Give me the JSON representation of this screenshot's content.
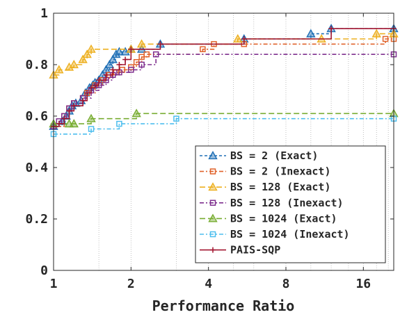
{
  "chart_data": {
    "type": "line",
    "xlabel": "Performance Ratio",
    "ylabel": "",
    "x_scale": "log2",
    "xlim": [
      1,
      21
    ],
    "ylim": [
      0,
      1
    ],
    "x_ticks": [
      1,
      2,
      4,
      8,
      16
    ],
    "x_tick_labels": [
      "1",
      "2",
      "4",
      "8",
      "16"
    ],
    "y_ticks": [
      0,
      0.2,
      0.4,
      0.6,
      0.8,
      1
    ],
    "y_tick_labels": [
      "0",
      "0.2",
      "0.4",
      "0.6",
      "0.8",
      "1"
    ],
    "grid": "vertical dotted lines at selected x positions",
    "vgrid_x": [
      1.5,
      2,
      3,
      4,
      5,
      6,
      8,
      10,
      12,
      14,
      16,
      18,
      20
    ],
    "legend_position": "lower-right",
    "series": [
      {
        "name": "BS = 2 (Exact)",
        "color": "#1f6fb5",
        "dash": "4 3",
        "marker": "triangle",
        "x": [
          1.0,
          1.08,
          1.12,
          1.15,
          1.18,
          1.22,
          1.28,
          1.33,
          1.38,
          1.42,
          1.45,
          1.5,
          1.55,
          1.6,
          1.65,
          1.7,
          1.75,
          1.8,
          1.9,
          2.0,
          2.2,
          2.6,
          5.5,
          10,
          12,
          21
        ],
        "y": [
          0.56,
          0.58,
          0.6,
          0.62,
          0.64,
          0.65,
          0.66,
          0.69,
          0.71,
          0.72,
          0.73,
          0.74,
          0.76,
          0.78,
          0.8,
          0.82,
          0.84,
          0.85,
          0.85,
          0.86,
          0.86,
          0.88,
          0.9,
          0.92,
          0.94,
          0.94
        ]
      },
      {
        "name": "BS = 2 (Inexact)",
        "color": "#e0622a",
        "dash": "6 3 2 3",
        "marker": "square",
        "x": [
          1.0,
          1.1,
          1.15,
          1.2,
          1.3,
          1.35,
          1.45,
          1.55,
          1.65,
          1.75,
          1.85,
          2.0,
          2.1,
          2.2,
          2.3,
          3.8,
          4.2,
          5.5,
          19.5,
          21
        ],
        "y": [
          0.56,
          0.6,
          0.63,
          0.65,
          0.67,
          0.69,
          0.72,
          0.74,
          0.76,
          0.77,
          0.78,
          0.79,
          0.81,
          0.83,
          0.84,
          0.86,
          0.88,
          0.88,
          0.9,
          0.9
        ]
      },
      {
        "name": "BS = 128 (Exact)",
        "color": "#edb020",
        "dash": "8 4",
        "marker": "triangle",
        "x": [
          1.0,
          1.05,
          1.15,
          1.2,
          1.3,
          1.35,
          1.4,
          2.0,
          2.2,
          5.2,
          11,
          18,
          21
        ],
        "y": [
          0.76,
          0.78,
          0.79,
          0.8,
          0.82,
          0.84,
          0.86,
          0.86,
          0.88,
          0.9,
          0.9,
          0.92,
          0.92
        ]
      },
      {
        "name": "BS = 128 (Inexact)",
        "color": "#7e2f8e",
        "dash": "6 3 2 3",
        "marker": "square",
        "x": [
          1.0,
          1.05,
          1.1,
          1.15,
          1.2,
          1.3,
          1.4,
          1.5,
          1.6,
          1.7,
          1.8,
          2.0,
          2.2,
          2.5,
          21
        ],
        "y": [
          0.56,
          0.58,
          0.6,
          0.63,
          0.65,
          0.67,
          0.7,
          0.72,
          0.74,
          0.76,
          0.77,
          0.78,
          0.8,
          0.84,
          0.84
        ]
      },
      {
        "name": "BS = 1024 (Exact)",
        "color": "#77ac30",
        "dash": "8 4",
        "marker": "triangle",
        "x": [
          1.0,
          1.15,
          1.2,
          1.4,
          2.1,
          21
        ],
        "y": [
          0.57,
          0.57,
          0.57,
          0.59,
          0.61,
          0.61
        ]
      },
      {
        "name": "BS = 1024 (Inexact)",
        "color": "#4dbeee",
        "dash": "6 3 2 3",
        "marker": "square",
        "x": [
          1.0,
          1.4,
          1.8,
          3.0,
          21
        ],
        "y": [
          0.53,
          0.55,
          0.57,
          0.59,
          0.59
        ]
      },
      {
        "name": "PAIS-SQP",
        "color": "#a2142f",
        "dash": "",
        "marker": "plus",
        "x": [
          1.0,
          1.05,
          1.1,
          1.15,
          1.2,
          1.3,
          1.35,
          1.4,
          1.45,
          1.5,
          1.6,
          1.7,
          1.8,
          1.9,
          2.0,
          2.6,
          5.5,
          12,
          21
        ],
        "y": [
          0.56,
          0.57,
          0.59,
          0.62,
          0.64,
          0.66,
          0.69,
          0.71,
          0.72,
          0.74,
          0.76,
          0.78,
          0.8,
          0.82,
          0.86,
          0.88,
          0.9,
          0.94,
          0.94
        ]
      }
    ]
  }
}
